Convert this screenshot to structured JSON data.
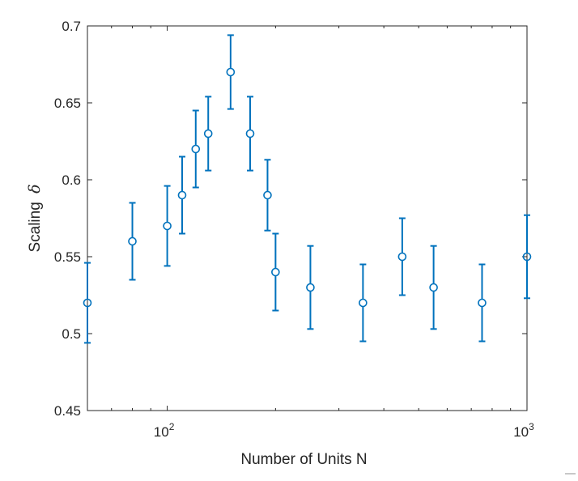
{
  "chart_data": {
    "type": "scatter",
    "xscale": "log",
    "xlim": [
      60,
      1000
    ],
    "ylim": [
      0.45,
      0.7
    ],
    "x_ticks": [
      {
        "value": 100,
        "base": "10",
        "exp": "2"
      },
      {
        "value": 1000,
        "base": "10",
        "exp": "3"
      }
    ],
    "y_ticks": [
      {
        "value": 0.45,
        "label": "0.45"
      },
      {
        "value": 0.5,
        "label": "0.5"
      },
      {
        "value": 0.55,
        "label": "0.55"
      },
      {
        "value": 0.6,
        "label": "0.6"
      },
      {
        "value": 0.65,
        "label": "0.65"
      },
      {
        "value": 0.7,
        "label": "0.7"
      }
    ],
    "xlabel": "Number of Units N",
    "ylabel": "Scaling",
    "ylabel_symbol": "δ",
    "grid": false,
    "box": true,
    "marker": "circle",
    "color": "#0072BD",
    "points": [
      {
        "x": 60,
        "y": 0.52,
        "err": 0.026
      },
      {
        "x": 80,
        "y": 0.56,
        "err": 0.025
      },
      {
        "x": 100,
        "y": 0.57,
        "err": 0.026
      },
      {
        "x": 110,
        "y": 0.59,
        "err": 0.025
      },
      {
        "x": 120,
        "y": 0.62,
        "err": 0.025
      },
      {
        "x": 130,
        "y": 0.63,
        "err": 0.024
      },
      {
        "x": 150,
        "y": 0.67,
        "err": 0.024
      },
      {
        "x": 170,
        "y": 0.63,
        "err": 0.024
      },
      {
        "x": 190,
        "y": 0.59,
        "err": 0.023
      },
      {
        "x": 200,
        "y": 0.54,
        "err": 0.025
      },
      {
        "x": 250,
        "y": 0.53,
        "err": 0.027
      },
      {
        "x": 350,
        "y": 0.52,
        "err": 0.025
      },
      {
        "x": 450,
        "y": 0.55,
        "err": 0.025
      },
      {
        "x": 550,
        "y": 0.53,
        "err": 0.027
      },
      {
        "x": 750,
        "y": 0.52,
        "err": 0.025
      },
      {
        "x": 1000,
        "y": 0.55,
        "err": 0.027
      }
    ]
  }
}
